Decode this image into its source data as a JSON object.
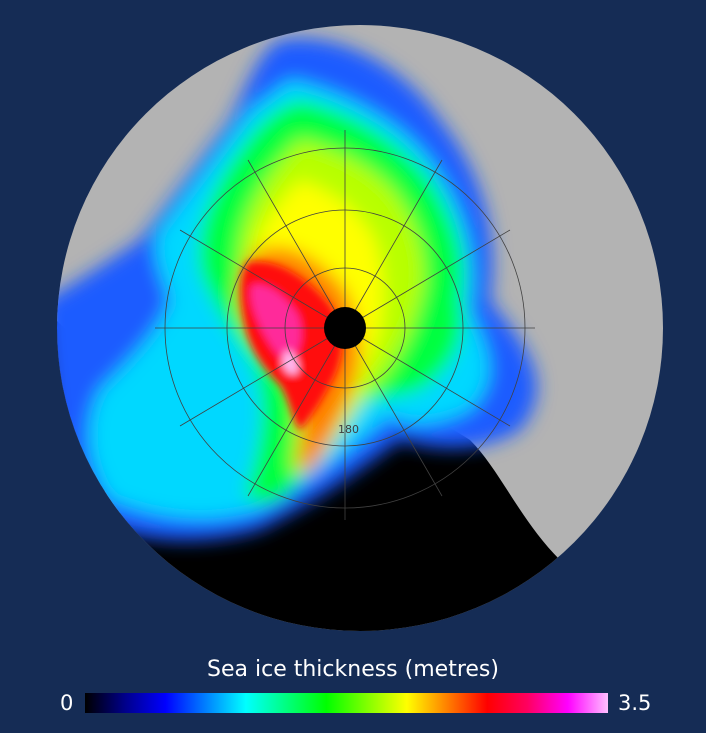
{
  "colors": {
    "background": "#152c55",
    "land": "#b3b3b3",
    "ocean_no_ice": "#000000",
    "pole_hole": "#000000",
    "graticule": "#404040"
  },
  "map": {
    "projection": "north polar stereographic",
    "graticule_label": "180"
  },
  "legend": {
    "title": "Sea ice thickness (metres)",
    "min_label": "0",
    "max_label": "3.5",
    "colormap": [
      "#000000",
      "#00008b",
      "#0000ff",
      "#0080ff",
      "#00ffff",
      "#00ff80",
      "#00ff00",
      "#80ff00",
      "#ffff00",
      "#ff8000",
      "#ff0000",
      "#ff0060",
      "#ff00ff",
      "#ffc0ff"
    ]
  }
}
